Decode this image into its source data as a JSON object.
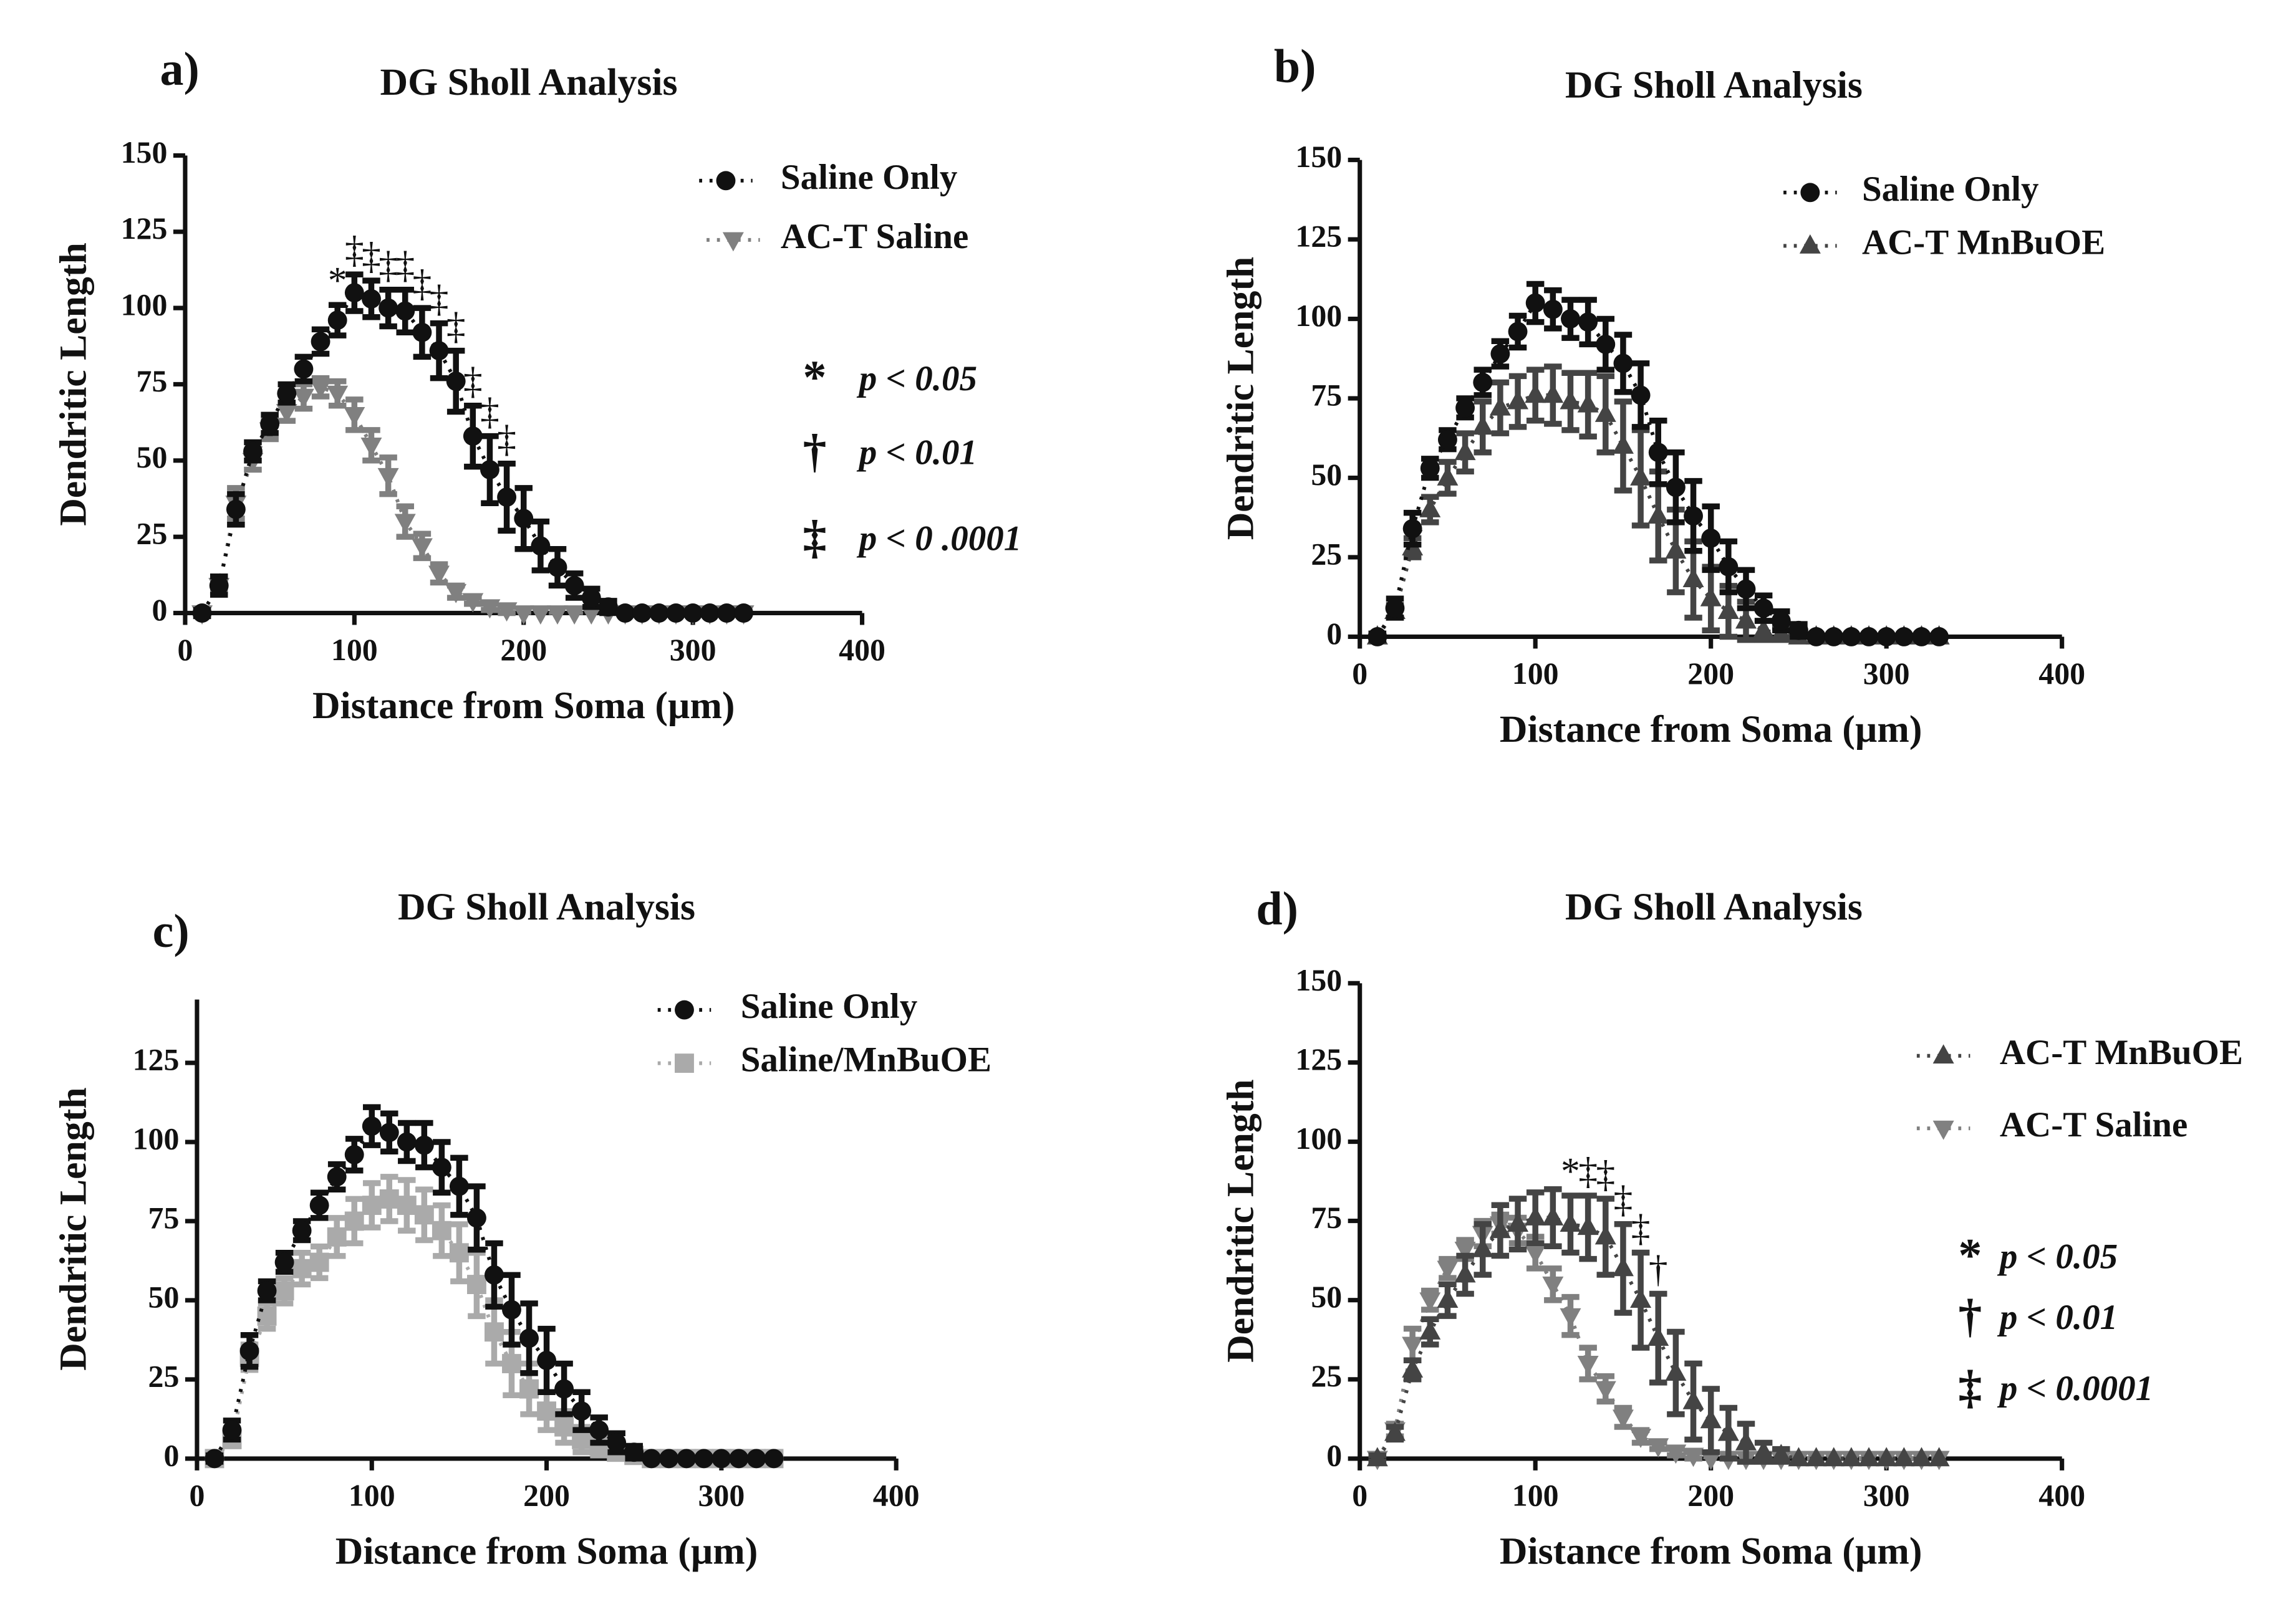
{
  "chart_data": [
    {
      "type": "line",
      "panel_label": "a)",
      "title": "DG Sholl Analysis",
      "xlabel": "Distance from Soma (µm)",
      "ylabel": "Dendritic Length",
      "xlim": [
        0,
        400
      ],
      "xticks": [
        0,
        100,
        200,
        300,
        400
      ],
      "ylim": [
        0,
        150
      ],
      "yticks": [
        0,
        25,
        50,
        75,
        100,
        125,
        150
      ],
      "x": [
        10,
        20,
        30,
        40,
        50,
        60,
        70,
        80,
        90,
        100,
        110,
        120,
        130,
        140,
        150,
        160,
        170,
        180,
        190,
        200,
        210,
        220,
        230,
        240,
        250,
        260,
        270,
        280,
        290,
        300,
        310,
        320,
        330
      ],
      "series": [
        {
          "name": "Saline Only",
          "color": "#111111",
          "marker": "circle",
          "values": [
            0,
            9,
            34,
            53,
            62,
            72,
            80,
            89,
            96,
            105,
            103,
            100,
            99,
            92,
            86,
            76,
            58,
            47,
            38,
            31,
            22,
            15,
            9,
            5,
            2,
            0,
            0,
            0,
            0,
            0,
            0,
            0,
            0
          ],
          "errors": [
            1,
            3,
            5,
            3,
            3,
            3,
            4,
            4,
            5,
            6,
            6,
            6,
            7,
            8,
            9,
            10,
            10,
            11,
            11,
            10,
            8,
            6,
            4,
            3,
            2,
            0,
            0,
            0,
            0,
            0,
            0,
            0,
            0
          ]
        },
        {
          "name": "AC-T Saline",
          "color": "#808080",
          "marker": "triangle-down",
          "values": [
            0,
            9,
            36,
            50,
            60,
            66,
            71,
            74,
            72,
            65,
            55,
            45,
            30,
            22,
            13,
            7,
            4,
            2,
            1,
            0,
            0,
            0,
            0,
            0,
            0,
            0,
            0,
            0,
            0,
            0,
            0,
            0,
            0
          ],
          "errors": [
            1,
            2,
            5,
            3,
            3,
            3,
            4,
            3,
            4,
            5,
            5,
            6,
            5,
            4,
            3,
            2,
            1,
            1,
            1,
            0,
            0,
            0,
            0,
            0,
            0,
            0,
            0,
            0,
            0,
            0,
            0,
            0,
            0
          ]
        }
      ],
      "significance": [
        {
          "x": 90,
          "label": "*"
        },
        {
          "x": 100,
          "label": "‡"
        },
        {
          "x": 110,
          "label": "‡"
        },
        {
          "x": 120,
          "label": "‡"
        },
        {
          "x": 130,
          "label": "‡"
        },
        {
          "x": 140,
          "label": "‡"
        },
        {
          "x": 150,
          "label": "‡"
        },
        {
          "x": 160,
          "label": "‡"
        },
        {
          "x": 170,
          "label": "‡"
        },
        {
          "x": 180,
          "label": "‡"
        },
        {
          "x": 190,
          "label": "‡"
        }
      ],
      "key": [
        {
          "symbol": "*",
          "label": "p < 0.05"
        },
        {
          "symbol": "†",
          "label": "p < 0.01"
        },
        {
          "symbol": "‡",
          "label": "p < 0 .0001"
        }
      ]
    },
    {
      "type": "line",
      "panel_label": "b)",
      "title": "DG Sholl Analysis",
      "xlabel": "Distance from Soma (µm)",
      "ylabel": "Dendritic Length",
      "xlim": [
        0,
        400
      ],
      "xticks": [
        0,
        100,
        200,
        300,
        400
      ],
      "ylim": [
        0,
        150
      ],
      "yticks": [
        0,
        25,
        50,
        75,
        100,
        125,
        150
      ],
      "x": [
        10,
        20,
        30,
        40,
        50,
        60,
        70,
        80,
        90,
        100,
        110,
        120,
        130,
        140,
        150,
        160,
        170,
        180,
        190,
        200,
        210,
        220,
        230,
        240,
        250,
        260,
        270,
        280,
        290,
        300,
        310,
        320,
        330
      ],
      "series": [
        {
          "name": "Saline Only",
          "color": "#111111",
          "marker": "circle",
          "values": [
            0,
            9,
            34,
            53,
            62,
            72,
            80,
            89,
            96,
            105,
            103,
            100,
            99,
            92,
            86,
            76,
            58,
            47,
            38,
            31,
            22,
            15,
            9,
            5,
            2,
            0,
            0,
            0,
            0,
            0,
            0,
            0,
            0
          ],
          "errors": [
            1,
            3,
            5,
            3,
            3,
            3,
            4,
            4,
            5,
            6,
            6,
            6,
            7,
            8,
            9,
            10,
            10,
            11,
            11,
            10,
            8,
            6,
            4,
            3,
            2,
            0,
            0,
            0,
            0,
            0,
            0,
            0,
            0
          ]
        },
        {
          "name": "AC-T MnBuOE",
          "color": "#444444",
          "marker": "triangle-up",
          "values": [
            0,
            8,
            28,
            40,
            50,
            58,
            66,
            72,
            74,
            76,
            76,
            74,
            73,
            70,
            60,
            50,
            38,
            27,
            18,
            12,
            8,
            5,
            2,
            1,
            0,
            0,
            0,
            0,
            0,
            0,
            0,
            0,
            0
          ],
          "errors": [
            1,
            2,
            3,
            4,
            5,
            6,
            8,
            8,
            8,
            8,
            9,
            9,
            10,
            12,
            14,
            15,
            14,
            13,
            12,
            10,
            8,
            6,
            3,
            2,
            0,
            0,
            0,
            0,
            0,
            0,
            0,
            0,
            0
          ]
        }
      ]
    },
    {
      "type": "line",
      "panel_label": "c)",
      "title": "DG Sholl Analysis",
      "xlabel": "Distance from Soma (µm)",
      "ylabel": "Dendritic Length",
      "xlim": [
        0,
        400
      ],
      "xticks": [
        0,
        100,
        200,
        300,
        400
      ],
      "ylim": [
        0,
        145
      ],
      "yticks": [
        0,
        25,
        50,
        75,
        100,
        125
      ],
      "x": [
        10,
        20,
        30,
        40,
        50,
        60,
        70,
        80,
        90,
        100,
        110,
        120,
        130,
        140,
        150,
        160,
        170,
        180,
        190,
        200,
        210,
        220,
        230,
        240,
        250,
        260,
        270,
        280,
        290,
        300,
        310,
        320,
        330
      ],
      "series": [
        {
          "name": "Saline Only",
          "color": "#111111",
          "marker": "circle",
          "values": [
            0,
            9,
            34,
            53,
            62,
            72,
            80,
            89,
            96,
            105,
            103,
            100,
            99,
            92,
            86,
            76,
            58,
            47,
            38,
            31,
            22,
            15,
            9,
            5,
            2,
            0,
            0,
            0,
            0,
            0,
            0,
            0,
            0
          ],
          "errors": [
            1,
            3,
            5,
            3,
            3,
            3,
            4,
            4,
            5,
            6,
            6,
            6,
            7,
            8,
            9,
            10,
            10,
            11,
            11,
            10,
            8,
            6,
            4,
            3,
            2,
            0,
            0,
            0,
            0,
            0,
            0,
            0,
            0
          ]
        },
        {
          "name": "Saline/MnBuOE",
          "color": "#aaaaaa",
          "marker": "square",
          "values": [
            0,
            6,
            32,
            45,
            53,
            60,
            62,
            70,
            75,
            80,
            82,
            80,
            77,
            72,
            65,
            55,
            40,
            30,
            22,
            15,
            10,
            6,
            4,
            2,
            1,
            0,
            0,
            0,
            0,
            0,
            0,
            0,
            0
          ],
          "errors": [
            1,
            2,
            4,
            4,
            4,
            5,
            5,
            6,
            7,
            7,
            7,
            8,
            8,
            8,
            9,
            10,
            10,
            10,
            8,
            6,
            5,
            4,
            3,
            2,
            1,
            0,
            0,
            0,
            0,
            0,
            0,
            0,
            0
          ]
        }
      ]
    },
    {
      "type": "line",
      "panel_label": "d)",
      "title": "DG Sholl Analysis",
      "xlabel": "Distance from Soma (µm)",
      "ylabel": "Dendritic Length",
      "xlim": [
        0,
        400
      ],
      "xticks": [
        0,
        100,
        200,
        300,
        400
      ],
      "ylim": [
        0,
        150
      ],
      "yticks": [
        0,
        25,
        50,
        75,
        100,
        125,
        150
      ],
      "x": [
        10,
        20,
        30,
        40,
        50,
        60,
        70,
        80,
        90,
        100,
        110,
        120,
        130,
        140,
        150,
        160,
        170,
        180,
        190,
        200,
        210,
        220,
        230,
        240,
        250,
        260,
        270,
        280,
        290,
        300,
        310,
        320,
        330
      ],
      "series": [
        {
          "name": "AC-T MnBuOE",
          "color": "#444444",
          "marker": "triangle-up",
          "values": [
            0,
            8,
            28,
            40,
            50,
            58,
            66,
            72,
            74,
            76,
            76,
            74,
            73,
            70,
            60,
            50,
            38,
            27,
            18,
            12,
            8,
            5,
            2,
            1,
            0,
            0,
            0,
            0,
            0,
            0,
            0,
            0,
            0
          ],
          "errors": [
            1,
            2,
            3,
            4,
            5,
            6,
            8,
            8,
            8,
            8,
            9,
            9,
            10,
            12,
            14,
            15,
            14,
            13,
            12,
            10,
            8,
            6,
            3,
            2,
            0,
            0,
            0,
            0,
            0,
            0,
            0,
            0,
            0
          ]
        },
        {
          "name": "AC-T Saline",
          "color": "#808080",
          "marker": "triangle-down",
          "values": [
            0,
            9,
            36,
            50,
            60,
            66,
            71,
            74,
            72,
            65,
            55,
            45,
            30,
            22,
            13,
            7,
            4,
            2,
            1,
            0,
            0,
            0,
            0,
            0,
            0,
            0,
            0,
            0,
            0,
            0,
            0,
            0,
            0
          ],
          "errors": [
            1,
            2,
            5,
            3,
            3,
            3,
            4,
            3,
            4,
            5,
            5,
            6,
            5,
            4,
            3,
            2,
            1,
            1,
            1,
            0,
            0,
            0,
            0,
            0,
            0,
            0,
            0,
            0,
            0,
            0,
            0,
            0,
            0
          ]
        }
      ],
      "significance": [
        {
          "x": 120,
          "label": "*"
        },
        {
          "x": 130,
          "label": "‡"
        },
        {
          "x": 140,
          "label": "‡"
        },
        {
          "x": 150,
          "label": "‡"
        },
        {
          "x": 160,
          "label": "‡"
        },
        {
          "x": 170,
          "label": "†"
        }
      ],
      "key": [
        {
          "symbol": "*",
          "label": "p < 0.05"
        },
        {
          "symbol": "†",
          "label": "p < 0.01"
        },
        {
          "symbol": "‡",
          "label": "p < 0.0001"
        }
      ]
    }
  ]
}
